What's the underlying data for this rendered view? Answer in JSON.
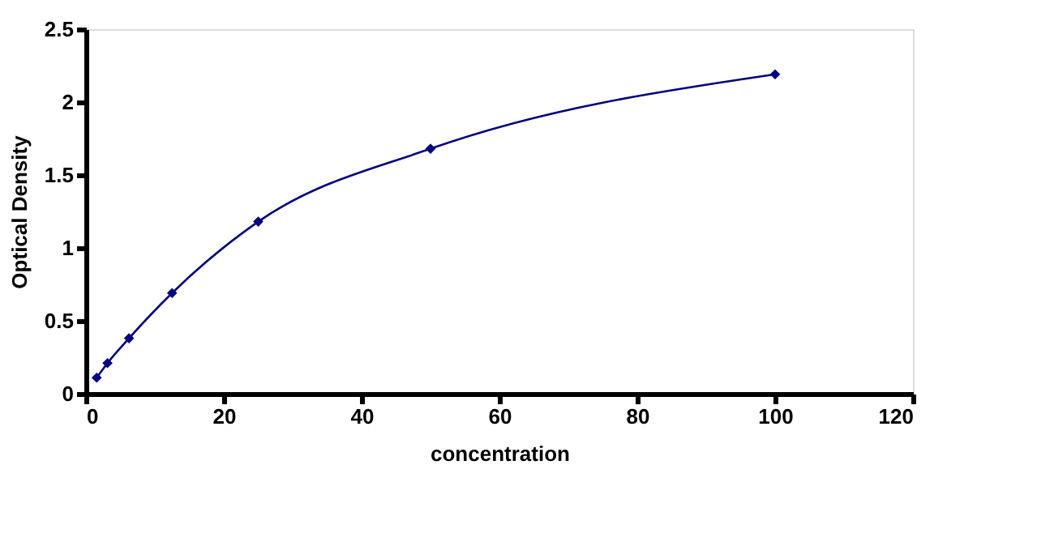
{
  "chart_data": {
    "type": "line",
    "xlabel": "concentration",
    "ylabel": "Optical Density",
    "x": [
      1.56,
      3.125,
      6.25,
      12.5,
      25,
      50,
      100
    ],
    "series": [
      {
        "color": "#000080",
        "values": [
          0.11,
          0.21,
          0.38,
          0.69,
          1.18,
          1.68,
          2.19
        ]
      }
    ],
    "xlim": [
      0,
      120
    ],
    "xticks": [
      0,
      20,
      40,
      60,
      80,
      100,
      120
    ],
    "ylim": [
      0,
      2.5
    ],
    "yticks": [
      0,
      0.5,
      1,
      1.5,
      2,
      2.5
    ],
    "grid": false,
    "marker": "diamond",
    "line_style": "solid"
  }
}
